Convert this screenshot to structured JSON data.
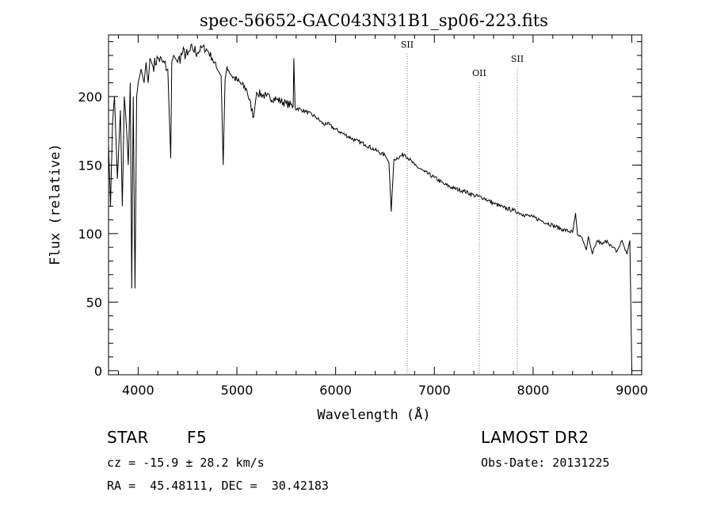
{
  "chart_data": {
    "type": "line",
    "title": "spec-56652-GAC043N31B1_sp06-223.fits",
    "xlabel": "Wavelength (Å)",
    "ylabel": "Flux (relative)",
    "xlim": [
      3700,
      9100
    ],
    "ylim": [
      -3,
      245
    ],
    "xticks": [
      4000,
      5000,
      6000,
      7000,
      8000,
      9000
    ],
    "yticks": [
      0,
      50,
      100,
      150,
      200
    ],
    "lines": [
      {
        "label": "SII",
        "x": 6725
      },
      {
        "label": "OII",
        "x": 7455
      },
      {
        "label": "SII",
        "x": 7840
      }
    ],
    "series": [
      {
        "name": "spectrum",
        "x": [
          3700,
          3720,
          3740,
          3760,
          3790,
          3820,
          3840,
          3860,
          3880,
          3900,
          3920,
          3935,
          3950,
          3968,
          3985,
          4000,
          4030,
          4060,
          4080,
          4101,
          4120,
          4150,
          4200,
          4250,
          4300,
          4330,
          4340,
          4360,
          4400,
          4450,
          4500,
          4550,
          4600,
          4650,
          4700,
          4750,
          4800,
          4840,
          4861,
          4880,
          4900,
          4950,
          5000,
          5100,
          5170,
          5200,
          5300,
          5400,
          5500,
          5570,
          5577,
          5590,
          5700,
          5800,
          5890,
          5900,
          6000,
          6100,
          6200,
          6300,
          6400,
          6500,
          6540,
          6563,
          6590,
          6700,
          6800,
          6900,
          7000,
          7100,
          7200,
          7300,
          7400,
          7500,
          7600,
          7700,
          7800,
          7900,
          8000,
          8100,
          8200,
          8300,
          8400,
          8430,
          8450,
          8500,
          8540,
          8560,
          8600,
          8650,
          8700,
          8750,
          8800,
          8850,
          8900,
          8950,
          8980,
          9000,
          9010
        ],
        "values": [
          165,
          120,
          180,
          200,
          140,
          190,
          120,
          200,
          180,
          150,
          210,
          60,
          200,
          60,
          200,
          210,
          220,
          210,
          225,
          210,
          228,
          222,
          228,
          225,
          220,
          155,
          225,
          230,
          225,
          232,
          230,
          235,
          232,
          236,
          234,
          228,
          220,
          215,
          150,
          212,
          222,
          215,
          212,
          205,
          185,
          203,
          200,
          198,
          195,
          193,
          228,
          192,
          189,
          185,
          179,
          181,
          176,
          172,
          168,
          165,
          161,
          157,
          152,
          116,
          154,
          158,
          150,
          145,
          141,
          136,
          133,
          131,
          128,
          126,
          122,
          119,
          117,
          114,
          112,
          109,
          106,
          103,
          101,
          115,
          99,
          96,
          88,
          98,
          85,
          95,
          92,
          95,
          90,
          87,
          95,
          85,
          95,
          0,
          0
        ]
      }
    ]
  },
  "info": {
    "object_class": "STAR",
    "subclass": "F5",
    "survey": "LAMOST DR2",
    "cz": "cz = -15.9 ± 28.2 km/s",
    "obs_date": "Obs-Date: 20131225",
    "radec": "RA =  45.48111, DEC =  30.42183"
  }
}
